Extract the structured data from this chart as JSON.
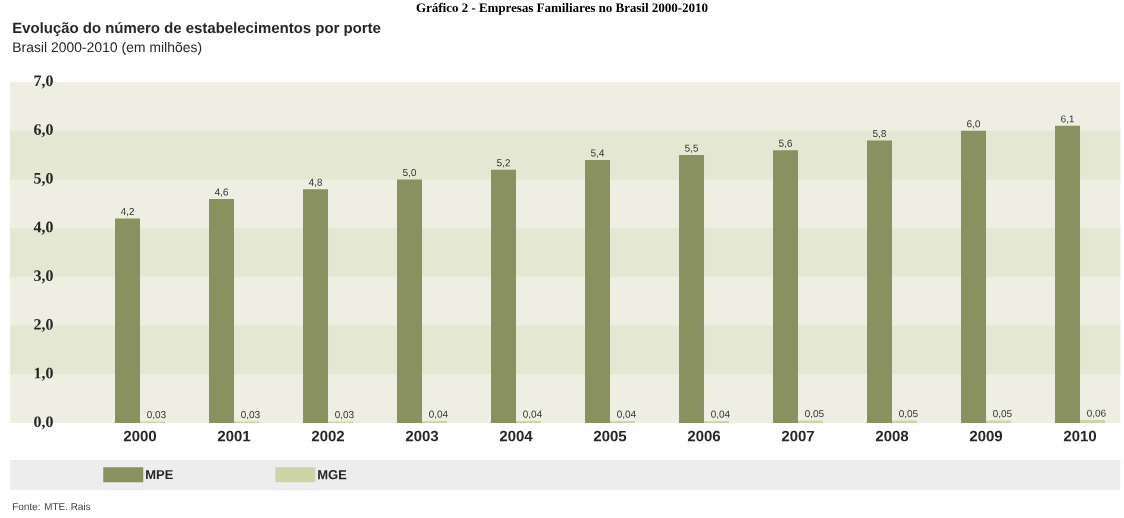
{
  "chart_data": {
    "type": "bar",
    "title": "Evolução do número de estabelecimentos por porte",
    "subtitle": "Brasil 2000-2010 (em milhões)",
    "annotations": [
      "Gráfico 2 - Empresas Familiares no Brasil 2000-2010",
      "Fonte: MTE. Rais"
    ],
    "categories": [
      "2000",
      "2001",
      "2002",
      "2003",
      "2004",
      "2005",
      "2006",
      "2007",
      "2008",
      "2009",
      "2010"
    ],
    "series": [
      {
        "name": "MPE",
        "color": "#8a9160",
        "values": [
          4.2,
          4.6,
          4.8,
          5.0,
          5.2,
          5.4,
          5.5,
          5.6,
          5.8,
          6.0,
          6.1
        ],
        "value_labels": [
          "4,2",
          "4,6",
          "4,8",
          "5,0",
          "5,2",
          "5,4",
          "5,5",
          "5,6",
          "5,8",
          "6,0",
          "6,1"
        ]
      },
      {
        "name": "MGE",
        "color": "#cdd5a8",
        "values": [
          0.03,
          0.03,
          0.03,
          0.04,
          0.04,
          0.04,
          0.04,
          0.05,
          0.05,
          0.05,
          0.06
        ],
        "value_labels": [
          "0,03",
          "0,03",
          "0,03",
          "0,04",
          "0,04",
          "0,04",
          "0,04",
          "0,05",
          "0,05",
          "0,05",
          "0,06"
        ]
      }
    ],
    "ylim": [
      0,
      7
    ],
    "yticks": [
      {
        "value": 0,
        "label": "0,0"
      },
      {
        "value": 1,
        "label": "1,0"
      },
      {
        "value": 2,
        "label": "2,0"
      },
      {
        "value": 3,
        "label": "3,0"
      },
      {
        "value": 4,
        "label": "4,0"
      },
      {
        "value": 5,
        "label": "5,0"
      },
      {
        "value": 6,
        "label": "6,0"
      },
      {
        "value": 7,
        "label": "7,0"
      }
    ],
    "bands": [
      {
        "axis": "y",
        "from": 1,
        "to": 2,
        "color": "#e4e8d2"
      },
      {
        "axis": "y",
        "from": 3,
        "to": 4,
        "color": "#e4e8d2"
      },
      {
        "axis": "y",
        "from": 5,
        "to": 6,
        "color": "#e4e8d2"
      }
    ],
    "legend": "bottom"
  }
}
